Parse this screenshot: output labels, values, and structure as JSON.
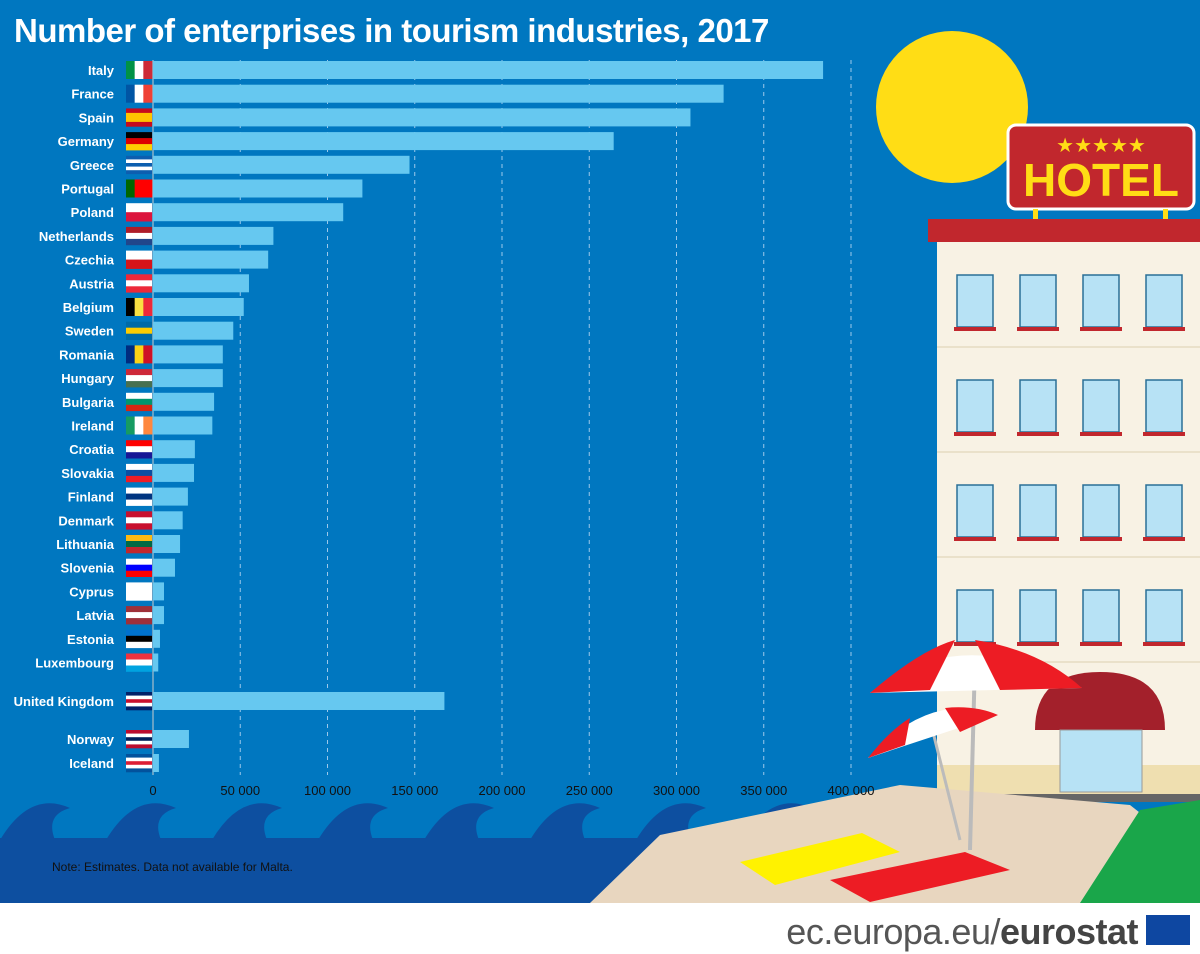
{
  "title": "Number of enterprises in tourism industries, 2017",
  "note": "Note: Estimates. Data not available for Malta.",
  "footer": {
    "site": "ec.europa.eu/",
    "brand": "eurostat"
  },
  "illustration": {
    "sign_text": "HOTEL",
    "stars": "★★★★★"
  },
  "colors": {
    "background": "#0077c0",
    "bar": "#66c8f0",
    "sea": "#0d4fa0",
    "title": "#ffffff"
  },
  "chart_data": {
    "type": "bar",
    "orientation": "horizontal",
    "title": "Number of enterprises in tourism industries, 2017",
    "xlim": [
      0,
      400000
    ],
    "xticks": [
      0,
      50000,
      100000,
      150000,
      200000,
      250000,
      300000,
      350000,
      400000
    ],
    "xtick_labels": [
      "0",
      "50 000",
      "100 000",
      "150 000",
      "200 000",
      "250 000",
      "300 000",
      "350 000",
      "400 000"
    ],
    "grid": "vertical dashed",
    "categories": [
      "Italy",
      "France",
      "Spain",
      "Germany",
      "Greece",
      "Portugal",
      "Poland",
      "Netherlands",
      "Czechia",
      "Austria",
      "Belgium",
      "Sweden",
      "Romania",
      "Hungary",
      "Bulgaria",
      "Ireland",
      "Croatia",
      "Slovakia",
      "Finland",
      "Denmark",
      "Lithuania",
      "Slovenia",
      "Cyprus",
      "Latvia",
      "Estonia",
      "Luxembourg",
      "United Kingdom",
      "Norway",
      "Iceland"
    ],
    "values": [
      384000,
      327000,
      308000,
      264000,
      147000,
      120000,
      109000,
      69000,
      66000,
      55000,
      52000,
      46000,
      40000,
      40000,
      35000,
      34000,
      24000,
      23500,
      20000,
      17000,
      15500,
      12600,
      6300,
      6300,
      4000,
      3000,
      167000,
      20600,
      3400
    ],
    "groups": [
      "EU",
      "EU",
      "EU",
      "EU",
      "EU",
      "EU",
      "EU",
      "EU",
      "EU",
      "EU",
      "EU",
      "EU",
      "EU",
      "EU",
      "EU",
      "EU",
      "EU",
      "EU",
      "EU",
      "EU",
      "EU",
      "EU",
      "EU",
      "EU",
      "EU",
      "EU",
      "UK",
      "EFTA",
      "EFTA"
    ]
  },
  "flags": [
    {
      "dir": "v",
      "c": [
        "#009246",
        "#ffffff",
        "#ce2b37"
      ]
    },
    {
      "dir": "v",
      "c": [
        "#0055a4",
        "#ffffff",
        "#ef4135"
      ]
    },
    {
      "dir": "h",
      "c": [
        "#c60b1e",
        "#ffc400",
        "#ffc400",
        "#c60b1e"
      ]
    },
    {
      "dir": "h",
      "c": [
        "#000000",
        "#dd0000",
        "#ffce00"
      ]
    },
    {
      "dir": "h",
      "c": [
        "#0d5eaf",
        "#ffffff",
        "#0d5eaf",
        "#ffffff",
        "#0d5eaf"
      ]
    },
    {
      "dir": "v",
      "c": [
        "#006600",
        "#ff0000",
        "#ff0000"
      ]
    },
    {
      "dir": "h",
      "c": [
        "#ffffff",
        "#dc143c"
      ]
    },
    {
      "dir": "h",
      "c": [
        "#ae1c28",
        "#ffffff",
        "#21468b"
      ]
    },
    {
      "dir": "h",
      "c": [
        "#ffffff",
        "#d7141a"
      ]
    },
    {
      "dir": "h",
      "c": [
        "#ed2939",
        "#ffffff",
        "#ed2939"
      ]
    },
    {
      "dir": "v",
      "c": [
        "#000000",
        "#fae042",
        "#ed2939"
      ]
    },
    {
      "dir": "h",
      "c": [
        "#006aa7",
        "#fecc00",
        "#006aa7"
      ]
    },
    {
      "dir": "v",
      "c": [
        "#002b7f",
        "#fcd116",
        "#ce1126"
      ]
    },
    {
      "dir": "h",
      "c": [
        "#ce2939",
        "#ffffff",
        "#477050"
      ]
    },
    {
      "dir": "h",
      "c": [
        "#ffffff",
        "#00966e",
        "#d62612"
      ]
    },
    {
      "dir": "v",
      "c": [
        "#169b62",
        "#ffffff",
        "#ff883e"
      ]
    },
    {
      "dir": "h",
      "c": [
        "#ff0000",
        "#ffffff",
        "#171796"
      ]
    },
    {
      "dir": "h",
      "c": [
        "#ffffff",
        "#0b4ea2",
        "#ee1c25"
      ]
    },
    {
      "dir": "h",
      "c": [
        "#ffffff",
        "#003580",
        "#ffffff"
      ]
    },
    {
      "dir": "h",
      "c": [
        "#c8102e",
        "#ffffff",
        "#c8102e"
      ]
    },
    {
      "dir": "h",
      "c": [
        "#fdb913",
        "#006a44",
        "#c1272d"
      ]
    },
    {
      "dir": "h",
      "c": [
        "#ffffff",
        "#0000ff",
        "#ff0000"
      ]
    },
    {
      "dir": "h",
      "c": [
        "#ffffff",
        "#ffffff"
      ]
    },
    {
      "dir": "h",
      "c": [
        "#9e3039",
        "#ffffff",
        "#9e3039"
      ]
    },
    {
      "dir": "h",
      "c": [
        "#0072ce",
        "#000000",
        "#ffffff"
      ]
    },
    {
      "dir": "h",
      "c": [
        "#ef3340",
        "#ffffff",
        "#00a3e0"
      ]
    },
    {
      "dir": "h",
      "c": [
        "#012169",
        "#ffffff",
        "#c8102e",
        "#ffffff",
        "#012169"
      ]
    },
    {
      "dir": "h",
      "c": [
        "#ba0c2f",
        "#ffffff",
        "#00205b",
        "#ffffff",
        "#ba0c2f"
      ]
    },
    {
      "dir": "h",
      "c": [
        "#02529c",
        "#ffffff",
        "#dc1e35",
        "#ffffff",
        "#02529c"
      ]
    }
  ]
}
